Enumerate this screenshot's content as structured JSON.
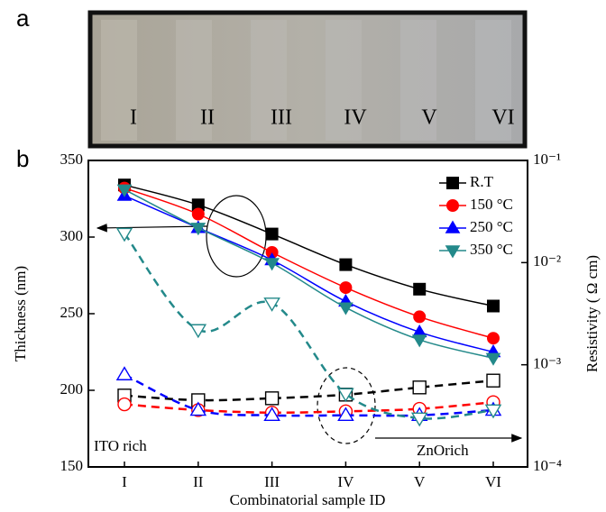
{
  "photo": {
    "panel_label": "a",
    "labels": [
      "I",
      "II",
      "III",
      "IV",
      "V",
      "VI"
    ]
  },
  "chart_data": {
    "type": "line",
    "panel_label": "b",
    "x_label": "Combinatorial sample ID",
    "y_label": "Thickness (nm)",
    "y2_label": "Resistivity ( Ω cm)",
    "annotations": [
      "ITO rich",
      "ZnOrich"
    ],
    "categories": [
      "I",
      "II",
      "III",
      "IV",
      "V",
      "VI"
    ],
    "ylim": [
      150,
      350
    ],
    "yticks": [
      150,
      200,
      250,
      300,
      350
    ],
    "y2lim": [
      0.0001,
      0.1
    ],
    "y2log": true,
    "y2ticks": [
      {
        "value": 0.0001,
        "label": "10⁻⁴"
      },
      {
        "value": 0.001,
        "label": "10⁻³"
      },
      {
        "value": 0.01,
        "label": "10⁻²"
      },
      {
        "value": 0.1,
        "label": "10⁻¹"
      }
    ],
    "series": [
      {
        "name": "R.T",
        "color": "#000000",
        "marker": "square",
        "filled": true,
        "values": [
          334,
          321,
          302,
          282,
          266,
          255
        ]
      },
      {
        "name": "150 °C",
        "color": "#ff0000",
        "marker": "circle",
        "filled": true,
        "values": [
          332,
          315,
          290,
          267,
          248,
          234
        ]
      },
      {
        "name": "250 °C",
        "color": "#0000ff",
        "marker": "triangle",
        "filled": true,
        "values": [
          327,
          306,
          285,
          258,
          238,
          225
        ]
      },
      {
        "name": "350 °C",
        "color": "#23898a",
        "marker": "triangle-down",
        "filled": true,
        "values": [
          331,
          306,
          283,
          254,
          233,
          221
        ]
      },
      {
        "color": "#000000",
        "marker": "square",
        "filled": false,
        "axis": "y2",
        "values": [
          0.0005,
          0.00045,
          0.00047,
          0.00051,
          0.0006,
          0.0007
        ]
      },
      {
        "color": "#ff0000",
        "marker": "circle",
        "filled": false,
        "axis": "y2",
        "values": [
          0.00041,
          0.00036,
          0.00034,
          0.00035,
          0.00037,
          0.00043
        ]
      },
      {
        "color": "#0000ff",
        "marker": "triangle",
        "filled": false,
        "axis": "y2",
        "values": [
          0.0008,
          0.00036,
          0.00032,
          0.00032,
          0.00032,
          0.00036
        ]
      },
      {
        "color": "#23898a",
        "marker": "triangle-down",
        "filled": false,
        "axis": "y2",
        "values": [
          0.0193,
          0.0022,
          0.004,
          0.00052,
          0.0003,
          0.00036
        ]
      }
    ]
  }
}
